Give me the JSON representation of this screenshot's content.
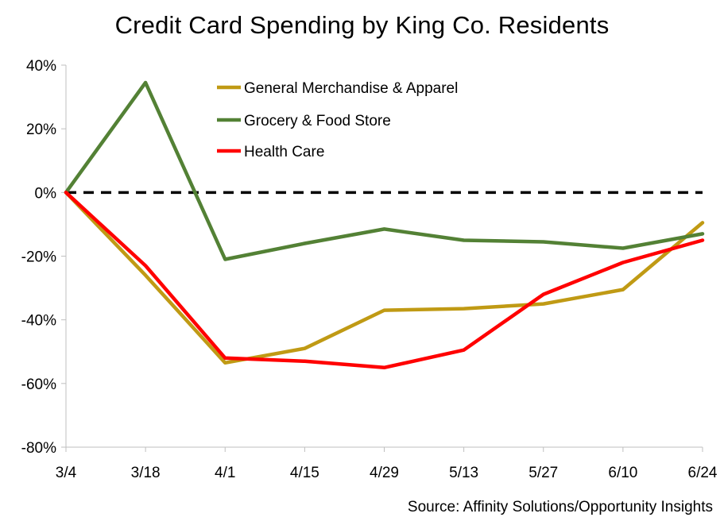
{
  "chart_data": {
    "type": "line",
    "title": "Credit Card Spending by King Co. Residents",
    "source": "Source: Affinity Solutions/Opportunity Insights",
    "categories": [
      "3/4",
      "3/18",
      "4/1",
      "4/15",
      "4/29",
      "5/13",
      "5/27",
      "6/10",
      "6/24"
    ],
    "ylim": [
      -80,
      40
    ],
    "yticks": [
      40,
      20,
      0,
      -20,
      -40,
      -60,
      -80
    ],
    "ytick_labels": [
      "40%",
      "20%",
      "0%",
      "-20%",
      "-40%",
      "-60%",
      "-80%"
    ],
    "reference_line": {
      "value": 0,
      "style": "dashed",
      "color": "#000000"
    },
    "legend_position": "top-center",
    "grid": false,
    "series": [
      {
        "name": "General Merchandise & Apparel",
        "color": "#C09A14",
        "values": [
          0,
          -26,
          -53.5,
          -49,
          -37,
          -36.5,
          -35,
          -30.5,
          -9.5
        ]
      },
      {
        "name": "Grocery & Food Store",
        "color": "#538135",
        "values": [
          0,
          34.5,
          -21,
          -16,
          -11.5,
          -15,
          -15.5,
          -17.5,
          -13
        ]
      },
      {
        "name": "Health Care",
        "color": "#FF0000",
        "values": [
          0,
          -23,
          -52,
          -53,
          -55,
          -49.5,
          -32,
          -22,
          -15
        ]
      }
    ]
  }
}
